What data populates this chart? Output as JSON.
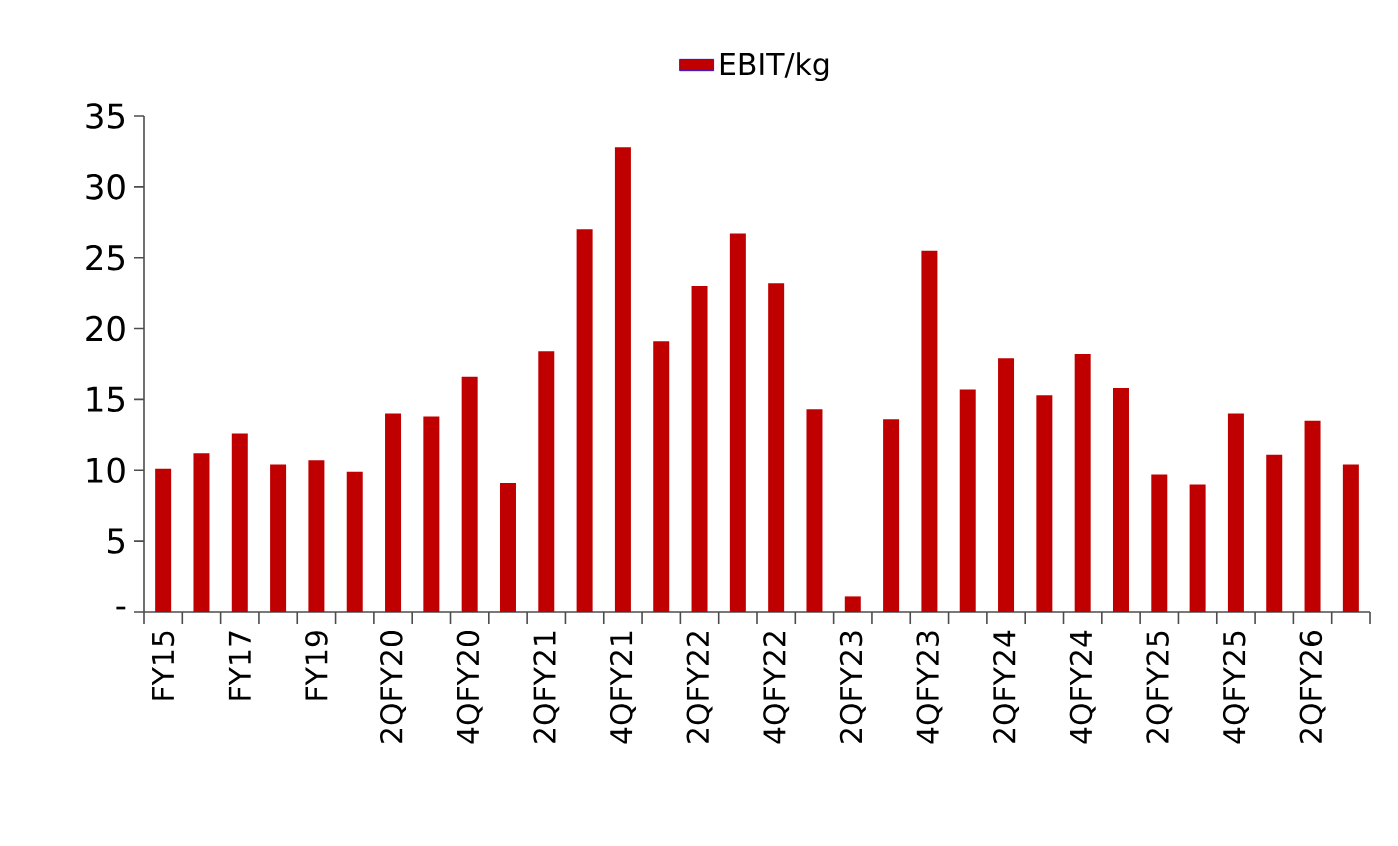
{
  "chart_data": {
    "type": "bar",
    "categories": [
      "FY15",
      null,
      "FY17",
      null,
      "FY19",
      null,
      "2QFY20",
      null,
      "4QFY20",
      null,
      "2QFY21",
      null,
      "4QFY21",
      null,
      "2QFY22",
      null,
      "4QFY22",
      null,
      "2QFY23",
      null,
      "4QFY23",
      null,
      "2QFY24",
      null,
      "4QFY24",
      null,
      "2QFY25",
      null,
      "4QFY25",
      null,
      "2QFY26",
      null
    ],
    "series": [
      {
        "name": "EBIT/kg",
        "color": "#c00000",
        "values": [
          10.1,
          11.2,
          12.6,
          10.4,
          10.7,
          9.9,
          14.0,
          13.8,
          16.6,
          9.1,
          18.4,
          27.0,
          32.8,
          19.1,
          23.0,
          26.7,
          23.2,
          14.3,
          1.1,
          13.6,
          25.5,
          15.7,
          17.9,
          15.3,
          18.2,
          15.8,
          9.7,
          9.0,
          14.0,
          11.1,
          13.5,
          10.4
        ]
      }
    ],
    "ylim": [
      0,
      35
    ],
    "yticks": [
      {
        "value": 0,
        "label": "-"
      },
      5,
      10,
      15,
      20,
      25,
      30,
      35
    ],
    "grid": false,
    "legend": "top"
  }
}
